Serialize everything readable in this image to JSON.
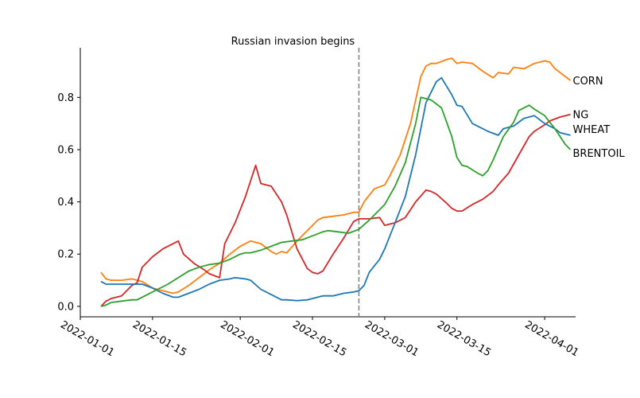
{
  "chart_data": {
    "type": "line",
    "title": "",
    "xlabel": "",
    "ylabel": "",
    "xlim": [
      "2022-01-01",
      "2022-04-07"
    ],
    "ylim": [
      -0.04,
      0.99
    ],
    "x_ticks": [
      "2022-01-01",
      "2022-01-15",
      "2022-02-01",
      "2022-02-15",
      "2022-03-01",
      "2022-03-15",
      "2022-04-01"
    ],
    "y_ticks": [
      "0.0",
      "0.2",
      "0.4",
      "0.6",
      "0.8"
    ],
    "grid": false,
    "annotation": {
      "text": "Russian invasion begins",
      "date": "2022-02-24",
      "style": "dashed"
    },
    "series": [
      {
        "name": "CORN",
        "color": "#ff7f0e",
        "points": [
          [
            "2022-01-05",
            0.13
          ],
          [
            "2022-01-06",
            0.105
          ],
          [
            "2022-01-07",
            0.1
          ],
          [
            "2022-01-09",
            0.1
          ],
          [
            "2022-01-11",
            0.105
          ],
          [
            "2022-01-13",
            0.095
          ],
          [
            "2022-01-15",
            0.07
          ],
          [
            "2022-01-17",
            0.06
          ],
          [
            "2022-01-19",
            0.05
          ],
          [
            "2022-01-20",
            0.055
          ],
          [
            "2022-01-22",
            0.08
          ],
          [
            "2022-01-24",
            0.11
          ],
          [
            "2022-01-26",
            0.14
          ],
          [
            "2022-01-28",
            0.165
          ],
          [
            "2022-01-30",
            0.2
          ],
          [
            "2022-02-01",
            0.23
          ],
          [
            "2022-02-02",
            0.24
          ],
          [
            "2022-02-03",
            0.25
          ],
          [
            "2022-02-05",
            0.24
          ],
          [
            "2022-02-07",
            0.21
          ],
          [
            "2022-02-08",
            0.2
          ],
          [
            "2022-02-09",
            0.21
          ],
          [
            "2022-02-10",
            0.205
          ],
          [
            "2022-02-12",
            0.25
          ],
          [
            "2022-02-14",
            0.29
          ],
          [
            "2022-02-16",
            0.33
          ],
          [
            "2022-02-17",
            0.34
          ],
          [
            "2022-02-19",
            0.345
          ],
          [
            "2022-02-21",
            0.35
          ],
          [
            "2022-02-23",
            0.36
          ],
          [
            "2022-02-24",
            0.36
          ],
          [
            "2022-02-25",
            0.4
          ],
          [
            "2022-02-27",
            0.45
          ],
          [
            "2022-03-01",
            0.465
          ],
          [
            "2022-03-02",
            0.5
          ],
          [
            "2022-03-04",
            0.58
          ],
          [
            "2022-03-06",
            0.7
          ],
          [
            "2022-03-08",
            0.88
          ],
          [
            "2022-03-09",
            0.92
          ],
          [
            "2022-03-10",
            0.93
          ],
          [
            "2022-03-11",
            0.93
          ],
          [
            "2022-03-13",
            0.945
          ],
          [
            "2022-03-14",
            0.95
          ],
          [
            "2022-03-15",
            0.93
          ],
          [
            "2022-03-16",
            0.935
          ],
          [
            "2022-03-18",
            0.93
          ],
          [
            "2022-03-20",
            0.9
          ],
          [
            "2022-03-22",
            0.875
          ],
          [
            "2022-03-23",
            0.895
          ],
          [
            "2022-03-25",
            0.89
          ],
          [
            "2022-03-26",
            0.915
          ],
          [
            "2022-03-28",
            0.91
          ],
          [
            "2022-03-30",
            0.93
          ],
          [
            "2022-04-01",
            0.94
          ],
          [
            "2022-04-02",
            0.935
          ],
          [
            "2022-04-03",
            0.91
          ],
          [
            "2022-04-04",
            0.895
          ],
          [
            "2022-04-05",
            0.88
          ],
          [
            "2022-04-06",
            0.865
          ]
        ]
      },
      {
        "name": "NG",
        "color": "#d62728",
        "points": [
          [
            "2022-01-05",
            0.0
          ],
          [
            "2022-01-06",
            0.02
          ],
          [
            "2022-01-07",
            0.03
          ],
          [
            "2022-01-09",
            0.04
          ],
          [
            "2022-01-11",
            0.08
          ],
          [
            "2022-01-12",
            0.09
          ],
          [
            "2022-01-13",
            0.15
          ],
          [
            "2022-01-15",
            0.19
          ],
          [
            "2022-01-17",
            0.22
          ],
          [
            "2022-01-19",
            0.24
          ],
          [
            "2022-01-20",
            0.25
          ],
          [
            "2022-01-21",
            0.2
          ],
          [
            "2022-01-23",
            0.165
          ],
          [
            "2022-01-25",
            0.14
          ],
          [
            "2022-01-26",
            0.125
          ],
          [
            "2022-01-28",
            0.11
          ],
          [
            "2022-01-29",
            0.24
          ],
          [
            "2022-01-31",
            0.32
          ],
          [
            "2022-02-02",
            0.42
          ],
          [
            "2022-02-04",
            0.54
          ],
          [
            "2022-02-05",
            0.47
          ],
          [
            "2022-02-07",
            0.46
          ],
          [
            "2022-02-09",
            0.4
          ],
          [
            "2022-02-10",
            0.35
          ],
          [
            "2022-02-12",
            0.22
          ],
          [
            "2022-02-14",
            0.145
          ],
          [
            "2022-02-15",
            0.13
          ],
          [
            "2022-02-16",
            0.125
          ],
          [
            "2022-02-17",
            0.135
          ],
          [
            "2022-02-19",
            0.2
          ],
          [
            "2022-02-21",
            0.26
          ],
          [
            "2022-02-23",
            0.325
          ],
          [
            "2022-02-24",
            0.335
          ],
          [
            "2022-02-26",
            0.335
          ],
          [
            "2022-02-28",
            0.34
          ],
          [
            "2022-03-01",
            0.31
          ],
          [
            "2022-03-03",
            0.32
          ],
          [
            "2022-03-05",
            0.34
          ],
          [
            "2022-03-07",
            0.4
          ],
          [
            "2022-03-09",
            0.445
          ],
          [
            "2022-03-10",
            0.44
          ],
          [
            "2022-03-11",
            0.43
          ],
          [
            "2022-03-13",
            0.395
          ],
          [
            "2022-03-14",
            0.375
          ],
          [
            "2022-03-15",
            0.365
          ],
          [
            "2022-03-16",
            0.365
          ],
          [
            "2022-03-18",
            0.39
          ],
          [
            "2022-03-20",
            0.41
          ],
          [
            "2022-03-22",
            0.44
          ],
          [
            "2022-03-23",
            0.465
          ],
          [
            "2022-03-25",
            0.51
          ],
          [
            "2022-03-27",
            0.58
          ],
          [
            "2022-03-29",
            0.65
          ],
          [
            "2022-03-30",
            0.67
          ],
          [
            "2022-04-01",
            0.695
          ],
          [
            "2022-04-02",
            0.71
          ],
          [
            "2022-04-04",
            0.725
          ],
          [
            "2022-04-06",
            0.735
          ]
        ]
      },
      {
        "name": "WHEAT",
        "color": "#1f77b4",
        "points": [
          [
            "2022-01-05",
            0.095
          ],
          [
            "2022-01-06",
            0.085
          ],
          [
            "2022-01-08",
            0.085
          ],
          [
            "2022-01-11",
            0.085
          ],
          [
            "2022-01-13",
            0.085
          ],
          [
            "2022-01-15",
            0.07
          ],
          [
            "2022-01-17",
            0.05
          ],
          [
            "2022-01-19",
            0.035
          ],
          [
            "2022-01-20",
            0.035
          ],
          [
            "2022-01-22",
            0.05
          ],
          [
            "2022-01-24",
            0.065
          ],
          [
            "2022-01-26",
            0.085
          ],
          [
            "2022-01-28",
            0.1
          ],
          [
            "2022-01-30",
            0.105
          ],
          [
            "2022-01-31",
            0.11
          ],
          [
            "2022-02-02",
            0.105
          ],
          [
            "2022-02-03",
            0.1
          ],
          [
            "2022-02-05",
            0.065
          ],
          [
            "2022-02-07",
            0.045
          ],
          [
            "2022-02-09",
            0.025
          ],
          [
            "2022-02-10",
            0.025
          ],
          [
            "2022-02-12",
            0.022
          ],
          [
            "2022-02-14",
            0.025
          ],
          [
            "2022-02-16",
            0.035
          ],
          [
            "2022-02-17",
            0.04
          ],
          [
            "2022-02-19",
            0.04
          ],
          [
            "2022-02-21",
            0.05
          ],
          [
            "2022-02-23",
            0.055
          ],
          [
            "2022-02-24",
            0.06
          ],
          [
            "2022-02-25",
            0.08
          ],
          [
            "2022-02-26",
            0.13
          ],
          [
            "2022-02-28",
            0.18
          ],
          [
            "2022-03-01",
            0.22
          ],
          [
            "2022-03-03",
            0.32
          ],
          [
            "2022-03-05",
            0.42
          ],
          [
            "2022-03-07",
            0.58
          ],
          [
            "2022-03-09",
            0.78
          ],
          [
            "2022-03-11",
            0.86
          ],
          [
            "2022-03-12",
            0.875
          ],
          [
            "2022-03-14",
            0.81
          ],
          [
            "2022-03-15",
            0.77
          ],
          [
            "2022-03-16",
            0.765
          ],
          [
            "2022-03-18",
            0.7
          ],
          [
            "2022-03-20",
            0.68
          ],
          [
            "2022-03-21",
            0.67
          ],
          [
            "2022-03-23",
            0.655
          ],
          [
            "2022-03-24",
            0.68
          ],
          [
            "2022-03-26",
            0.69
          ],
          [
            "2022-03-28",
            0.72
          ],
          [
            "2022-03-29",
            0.725
          ],
          [
            "2022-03-30",
            0.73
          ],
          [
            "2022-04-01",
            0.7
          ],
          [
            "2022-04-03",
            0.68
          ],
          [
            "2022-04-04",
            0.665
          ],
          [
            "2022-04-06",
            0.655
          ]
        ]
      },
      {
        "name": "BRENTOIL",
        "color": "#2ca02c",
        "points": [
          [
            "2022-01-05",
            0.0
          ],
          [
            "2022-01-06",
            0.005
          ],
          [
            "2022-01-07",
            0.015
          ],
          [
            "2022-01-09",
            0.02
          ],
          [
            "2022-01-11",
            0.025
          ],
          [
            "2022-01-12",
            0.025
          ],
          [
            "2022-01-14",
            0.045
          ],
          [
            "2022-01-16",
            0.065
          ],
          [
            "2022-01-18",
            0.085
          ],
          [
            "2022-01-20",
            0.11
          ],
          [
            "2022-01-22",
            0.135
          ],
          [
            "2022-01-24",
            0.15
          ],
          [
            "2022-01-26",
            0.16
          ],
          [
            "2022-01-28",
            0.165
          ],
          [
            "2022-01-30",
            0.18
          ],
          [
            "2022-02-01",
            0.2
          ],
          [
            "2022-02-02",
            0.205
          ],
          [
            "2022-02-03",
            0.205
          ],
          [
            "2022-02-05",
            0.215
          ],
          [
            "2022-02-07",
            0.23
          ],
          [
            "2022-02-09",
            0.245
          ],
          [
            "2022-02-11",
            0.25
          ],
          [
            "2022-02-13",
            0.255
          ],
          [
            "2022-02-15",
            0.27
          ],
          [
            "2022-02-17",
            0.285
          ],
          [
            "2022-02-18",
            0.29
          ],
          [
            "2022-02-20",
            0.285
          ],
          [
            "2022-02-22",
            0.28
          ],
          [
            "2022-02-24",
            0.295
          ],
          [
            "2022-02-26",
            0.33
          ],
          [
            "2022-02-28",
            0.37
          ],
          [
            "2022-03-01",
            0.39
          ],
          [
            "2022-03-03",
            0.46
          ],
          [
            "2022-03-05",
            0.55
          ],
          [
            "2022-03-07",
            0.7
          ],
          [
            "2022-03-08",
            0.8
          ],
          [
            "2022-03-10",
            0.79
          ],
          [
            "2022-03-12",
            0.76
          ],
          [
            "2022-03-14",
            0.65
          ],
          [
            "2022-03-15",
            0.57
          ],
          [
            "2022-03-16",
            0.54
          ],
          [
            "2022-03-17",
            0.535
          ],
          [
            "2022-03-19",
            0.51
          ],
          [
            "2022-03-20",
            0.5
          ],
          [
            "2022-03-21",
            0.52
          ],
          [
            "2022-03-22",
            0.56
          ],
          [
            "2022-03-24",
            0.65
          ],
          [
            "2022-03-26",
            0.705
          ],
          [
            "2022-03-27",
            0.75
          ],
          [
            "2022-03-29",
            0.77
          ],
          [
            "2022-03-30",
            0.755
          ],
          [
            "2022-04-01",
            0.73
          ],
          [
            "2022-04-03",
            0.68
          ],
          [
            "2022-04-05",
            0.62
          ],
          [
            "2022-04-06",
            0.6
          ]
        ]
      }
    ]
  }
}
